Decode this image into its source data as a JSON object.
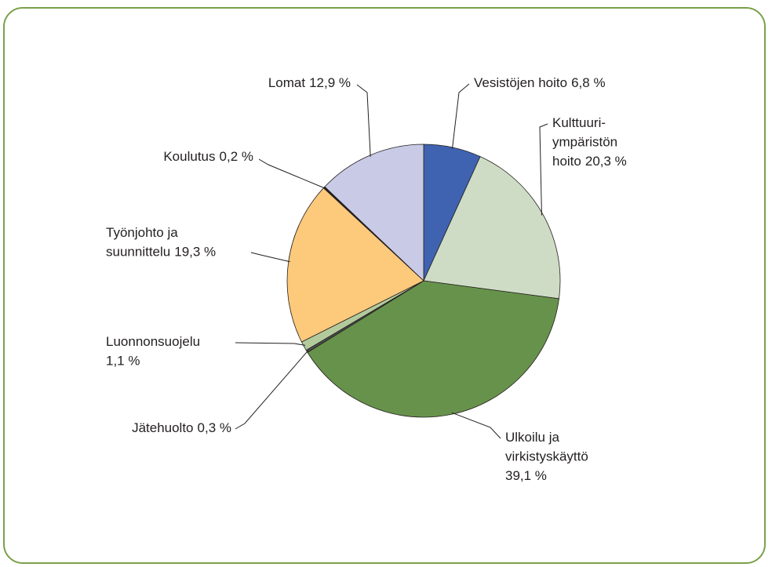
{
  "chart_data": {
    "type": "pie",
    "categories": [
      [
        "Vesistöjen hoito"
      ],
      [
        "Kulttuuri-",
        "ympäristön",
        "hoito"
      ],
      [
        "Ulkoilu ja",
        "virkistyskäyttö"
      ],
      [
        "Jätehuolto"
      ],
      [
        "Luonnonsuojelu"
      ],
      [
        "Työnjohto ja",
        "suunnittelu"
      ],
      [
        "Koulutus"
      ],
      [
        "Lomat"
      ]
    ],
    "values": [
      6.8,
      20.3,
      39.1,
      0.3,
      1.1,
      19.3,
      0.2,
      12.9
    ],
    "value_labels": [
      "6,8 %",
      "20,3 %",
      "39,1 %",
      "0,3 %",
      "1,1 %",
      "19,3 %",
      "0,2 %",
      "12,9 %"
    ],
    "colors": [
      "#3f63b0",
      "#cfdcc5",
      "#67924b",
      "#4a4f48",
      "#b3cb9c",
      "#fdc97b",
      "#222222",
      "#c9cae6"
    ]
  }
}
